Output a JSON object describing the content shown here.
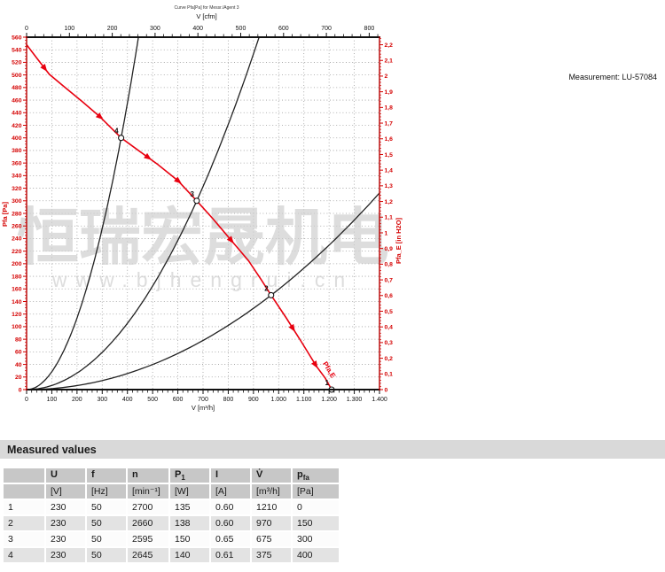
{
  "measurement_label": "Measurement: LU-57084",
  "watermark": {
    "line1": "恒瑞宏晟机电",
    "line2": "www.bjhengrui.cn"
  },
  "chart_data": {
    "type": "line",
    "title": "Curve Pfa[Pa] for Messr./Agent 3",
    "grid": "on",
    "axes": {
      "top": {
        "label": "V [cfm]",
        "min": 0,
        "max": 800,
        "major": 100,
        "minor": 20,
        "cfm_to_m3h": 1.699
      },
      "bottom": {
        "label": "V [m³/h]",
        "min": 0,
        "max": 1400,
        "major": 100,
        "minor": 20,
        "tick_labels": [
          "0",
          "100",
          "200",
          "300",
          "400",
          "500",
          "600",
          "700",
          "800",
          "900",
          "1.000",
          "1.100",
          "1.200",
          "1.300",
          "1.400"
        ]
      },
      "left": {
        "label": "Pfa [Pa]",
        "min": 0,
        "max": 560,
        "major": 20,
        "minor": 5,
        "color": "#d40000"
      },
      "right": {
        "label": "Pfa_E [in H2O]",
        "min": 0,
        "max": 2.2,
        "major": 0.1,
        "minor": 0.02,
        "inh2o_to_pa": 249.089,
        "tick_labels": [
          "0",
          "0,1",
          "0,2",
          "0,3",
          "0,4",
          "0,5",
          "0,6",
          "0,7",
          "0,8",
          "0,9",
          "1",
          "1,1",
          "1,2",
          "1,3",
          "1,4",
          "1,5",
          "1,6",
          "1,7",
          "1,8",
          "1,9",
          "2",
          "2,1",
          "2,2"
        ]
      }
    },
    "series": [
      {
        "name": "Pfa,E",
        "role": "fan-curve",
        "color": "#e8000f",
        "points": [
          [
            0,
            548
          ],
          [
            40,
            527
          ],
          [
            90,
            501
          ],
          [
            150,
            481
          ],
          [
            220,
            458
          ],
          [
            290,
            434
          ],
          [
            375,
            400
          ],
          [
            440,
            381
          ],
          [
            520,
            358
          ],
          [
            600,
            332
          ],
          [
            675,
            300
          ],
          [
            740,
            271
          ],
          [
            810,
            238
          ],
          [
            880,
            205
          ],
          [
            930,
            175
          ],
          [
            970,
            150
          ],
          [
            1030,
            114
          ],
          [
            1090,
            76
          ],
          [
            1150,
            37
          ],
          [
            1185,
            18
          ],
          [
            1210,
            0
          ]
        ],
        "arrow_markers_v": [
          70,
          290,
          480,
          600,
          810,
          1055,
          1145
        ]
      }
    ],
    "system_curves": [
      {
        "v": 375,
        "pa": 400
      },
      {
        "v": 675,
        "pa": 300
      },
      {
        "v": 970,
        "pa": 150
      }
    ],
    "measurement_points": [
      {
        "label": "1",
        "v": 1210,
        "pa": 0
      },
      {
        "label": "2",
        "v": 970,
        "pa": 150
      },
      {
        "label": "3",
        "v": 675,
        "pa": 300
      },
      {
        "label": "4",
        "v": 375,
        "pa": 400
      }
    ]
  },
  "measured": {
    "title": "Measured values",
    "columns": [
      {
        "base": ""
      },
      {
        "base": "U"
      },
      {
        "base": "f"
      },
      {
        "base": "n"
      },
      {
        "base": "P",
        "sub": "1"
      },
      {
        "base": "I"
      },
      {
        "base": "V̇"
      },
      {
        "base": "p",
        "sub": "fa"
      }
    ],
    "units": [
      "",
      "[V]",
      "[Hz]",
      "[min⁻¹]",
      "[W]",
      "[A]",
      "[m³/h]",
      "[Pa]"
    ],
    "rows": [
      [
        "1",
        "230",
        "50",
        "2700",
        "135",
        "0.60",
        "1210",
        "0"
      ],
      [
        "2",
        "230",
        "50",
        "2660",
        "138",
        "0.60",
        "970",
        "150"
      ],
      [
        "3",
        "230",
        "50",
        "2595",
        "150",
        "0.65",
        "675",
        "300"
      ],
      [
        "4",
        "230",
        "50",
        "2645",
        "140",
        "0.61",
        "375",
        "400"
      ]
    ]
  }
}
